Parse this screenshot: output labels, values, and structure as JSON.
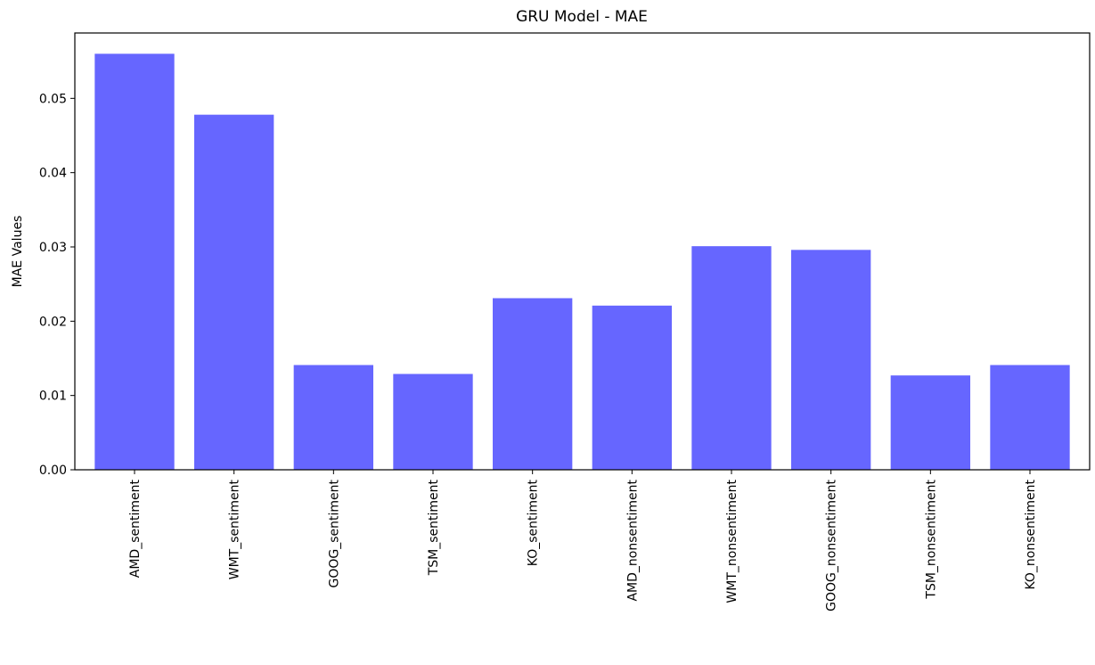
{
  "colors": {
    "bar": "#6666ff",
    "axis": "#000000",
    "background": "#ffffff"
  },
  "chart_data": {
    "type": "bar",
    "title": "GRU Model - MAE",
    "xlabel": "",
    "ylabel": "MAE Values",
    "categories": [
      "AMD_sentiment",
      "WMT_sentiment",
      "GOOG_sentiment",
      "TSM_sentiment",
      "KO_sentiment",
      "AMD_nonsentiment",
      "WMT_nonsentiment",
      "GOOG_nonsentiment",
      "TSM_nonsentiment",
      "KO_nonsentiment"
    ],
    "values": [
      0.056,
      0.0478,
      0.0141,
      0.0129,
      0.0231,
      0.0221,
      0.0301,
      0.0296,
      0.0127,
      0.0141
    ],
    "ylim": [
      0,
      0.0588
    ],
    "yticks": [
      0.0,
      0.01,
      0.02,
      0.03,
      0.04,
      0.05
    ],
    "ytick_labels": [
      "0.00",
      "0.01",
      "0.02",
      "0.03",
      "0.04",
      "0.05"
    ],
    "grid": false,
    "legend": "none"
  }
}
